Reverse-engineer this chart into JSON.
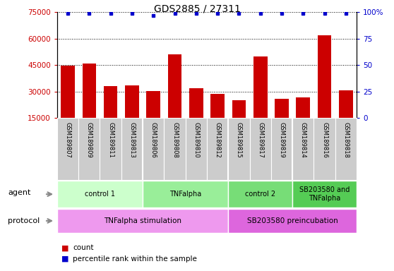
{
  "title": "GDS2885 / 27311",
  "samples": [
    "GSM189807",
    "GSM189809",
    "GSM189811",
    "GSM189813",
    "GSM189806",
    "GSM189808",
    "GSM189810",
    "GSM189812",
    "GSM189815",
    "GSM189817",
    "GSM189819",
    "GSM189814",
    "GSM189816",
    "GSM189818"
  ],
  "counts": [
    44500,
    46000,
    33000,
    33500,
    30200,
    51000,
    32000,
    28800,
    25000,
    50000,
    25800,
    26500,
    62000,
    30500
  ],
  "percentile_ranks": [
    99,
    99,
    99,
    99,
    97,
    99,
    99,
    99,
    99,
    99,
    99,
    99,
    99,
    99
  ],
  "ylim_left": [
    15000,
    75000
  ],
  "yticks_left": [
    15000,
    30000,
    45000,
    60000,
    75000
  ],
  "ylim_right": [
    0,
    100
  ],
  "yticks_right": [
    0,
    25,
    50,
    75,
    100
  ],
  "bar_color": "#cc0000",
  "dot_color": "#0000cc",
  "agent_groups": [
    {
      "label": "control 1",
      "start": 0,
      "end": 4,
      "color": "#ccffcc"
    },
    {
      "label": "TNFalpha",
      "start": 4,
      "end": 8,
      "color": "#99ee99"
    },
    {
      "label": "control 2",
      "start": 8,
      "end": 11,
      "color": "#77dd77"
    },
    {
      "label": "SB203580 and\nTNFalpha",
      "start": 11,
      "end": 14,
      "color": "#55cc55"
    }
  ],
  "protocol_groups": [
    {
      "label": "TNFalpha stimulation",
      "start": 0,
      "end": 8,
      "color": "#ee99ee"
    },
    {
      "label": "SB203580 preincubation",
      "start": 8,
      "end": 14,
      "color": "#dd66dd"
    }
  ],
  "background_color": "#ffffff",
  "tick_label_color_left": "#cc0000",
  "tick_label_color_right": "#0000cc",
  "sample_box_color": "#cccccc",
  "legend_count_color": "#cc0000",
  "legend_pct_color": "#0000cc"
}
